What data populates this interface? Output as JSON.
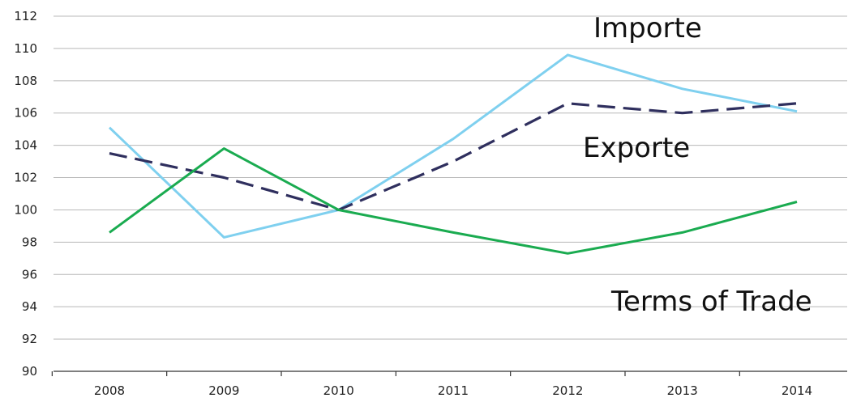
{
  "chart_data": {
    "type": "line",
    "categories": [
      "2008",
      "2009",
      "2010",
      "2011",
      "2012",
      "2013",
      "2014"
    ],
    "ylim": [
      90,
      112
    ],
    "yticks": [
      90,
      92,
      94,
      96,
      98,
      100,
      102,
      104,
      106,
      108,
      110,
      112
    ],
    "grid": true,
    "series": [
      {
        "name": "Importe",
        "color": "#7fd0ef",
        "dash": "solid",
        "values": [
          105.1,
          98.3,
          100.0,
          104.4,
          109.6,
          107.5,
          106.1
        ]
      },
      {
        "name": "Exporte",
        "color": "#2f2f5e",
        "dash": "dashed",
        "values": [
          103.5,
          102.0,
          100.0,
          103.0,
          106.6,
          106.0,
          106.6
        ]
      },
      {
        "name": "Terms of Trade",
        "color": "#1aab50",
        "dash": "solid",
        "values": [
          98.6,
          103.8,
          100.0,
          98.6,
          97.3,
          98.6,
          100.5
        ]
      }
    ]
  }
}
